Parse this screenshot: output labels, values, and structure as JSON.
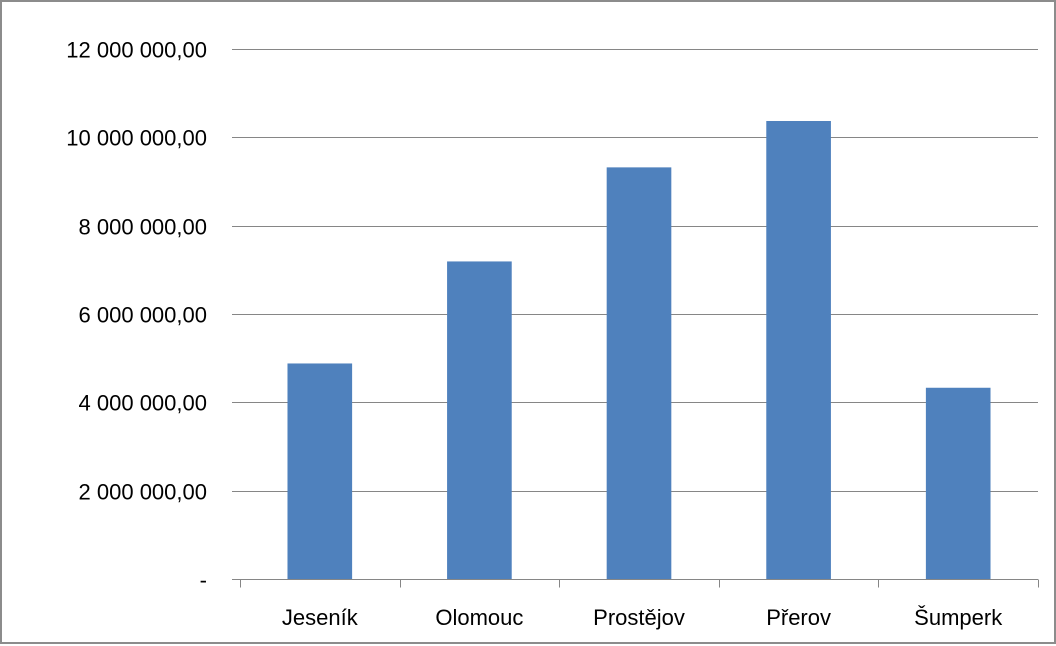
{
  "chart_data": {
    "type": "bar",
    "title": "",
    "xlabel": "",
    "ylabel": "",
    "categories": [
      "Jeseník",
      "Olomouc",
      "Prostějov",
      "Přerov",
      "Šumperk"
    ],
    "values": [
      4880000,
      7190000,
      9320000,
      10370000,
      4330000
    ],
    "ylim": [
      0,
      12000000
    ],
    "yticks": [
      0,
      2000000,
      4000000,
      6000000,
      8000000,
      10000000,
      12000000
    ],
    "ytick_labels": [
      "-",
      "2 000 000,00",
      "4 000 000,00",
      "6 000 000,00",
      "8 000 000,00",
      "10 000 000,00",
      "12 000 000,00"
    ],
    "grid": true,
    "legend": "none",
    "bar_color": "#4f81bd",
    "grid_color": "#868686",
    "axis_color": "#868686"
  }
}
